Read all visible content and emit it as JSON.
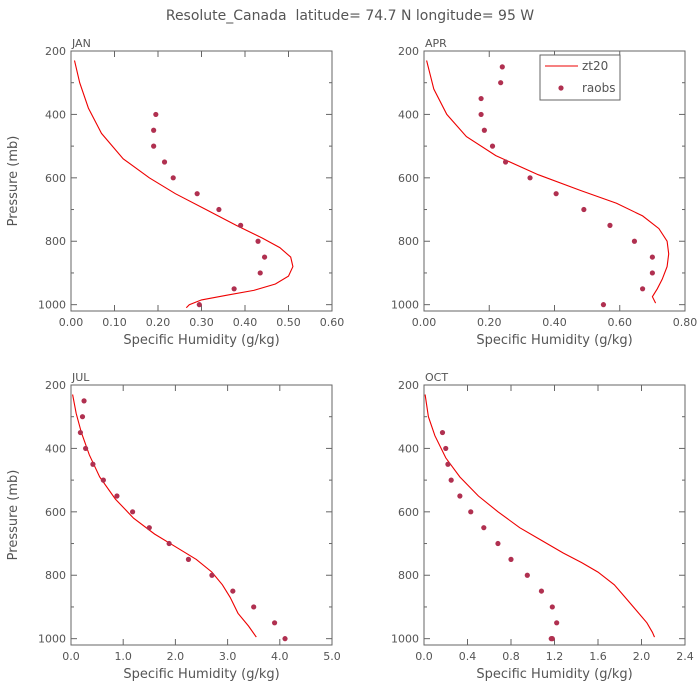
{
  "title": "Resolute_Canada  latitude= 74.7 N longitude= 95 W",
  "colors": {
    "model": "#ee0000",
    "obs": "#b03050",
    "axis": "#666666",
    "text": "#555555"
  },
  "legend": {
    "model": "zt20",
    "obs": "raobs"
  },
  "chart_data": [
    {
      "type": "line",
      "panel": "JAN",
      "xlabel": "Specific Humidity (g/kg)",
      "ylabel": "Pressure (mb)",
      "xlim": [
        0,
        0.6
      ],
      "ylim": [
        1020,
        200
      ],
      "xticks": [
        0,
        0.1,
        0.2,
        0.3,
        0.4,
        0.5,
        0.6
      ],
      "xtick_labels": [
        "0.00",
        "0.10",
        "0.20",
        "0.30",
        "0.40",
        "0.50",
        "0.60"
      ],
      "yticks": [
        200,
        400,
        600,
        800,
        1000
      ],
      "ytick_labels": [
        "200",
        "400",
        "600",
        "800",
        "1000"
      ],
      "series": [
        {
          "name": "zt20",
          "kind": "line",
          "x": [
            0.265,
            0.272,
            0.3,
            0.36,
            0.42,
            0.47,
            0.5,
            0.51,
            0.505,
            0.48,
            0.44,
            0.38,
            0.31,
            0.24,
            0.18,
            0.12,
            0.07,
            0.04,
            0.02,
            0.008
          ],
          "y": [
            1010,
            1000,
            985,
            970,
            955,
            935,
            910,
            880,
            850,
            820,
            790,
            750,
            700,
            650,
            600,
            540,
            460,
            380,
            300,
            230
          ]
        },
        {
          "name": "raobs",
          "kind": "points",
          "x": [
            0.195,
            0.19,
            0.19,
            0.215,
            0.235,
            0.29,
            0.34,
            0.39,
            0.43,
            0.445,
            0.435,
            0.375,
            0.295
          ],
          "y": [
            400,
            450,
            500,
            550,
            600,
            650,
            700,
            750,
            800,
            850,
            900,
            950,
            1000
          ]
        }
      ]
    },
    {
      "type": "line",
      "panel": "APR",
      "xlabel": "Specific Humidity (g/kg)",
      "ylabel": "",
      "xlim": [
        0,
        0.8
      ],
      "ylim": [
        1020,
        200
      ],
      "xticks": [
        0,
        0.2,
        0.4,
        0.6,
        0.8
      ],
      "xtick_labels": [
        "0.00",
        "0.20",
        "0.40",
        "0.60",
        "0.80"
      ],
      "yticks": [
        200,
        400,
        600,
        800,
        1000
      ],
      "ytick_labels": [
        "200",
        "400",
        "600",
        "800",
        "1000"
      ],
      "series": [
        {
          "name": "zt20",
          "kind": "line",
          "x": [
            0.71,
            0.7,
            0.715,
            0.73,
            0.745,
            0.75,
            0.745,
            0.72,
            0.67,
            0.59,
            0.48,
            0.35,
            0.22,
            0.13,
            0.07,
            0.03,
            0.008
          ],
          "y": [
            995,
            975,
            950,
            920,
            880,
            840,
            800,
            760,
            720,
            680,
            640,
            590,
            530,
            470,
            400,
            320,
            230
          ]
        },
        {
          "name": "raobs",
          "kind": "points",
          "x": [
            0.24,
            0.235,
            0.175,
            0.175,
            0.185,
            0.21,
            0.25,
            0.325,
            0.405,
            0.49,
            0.57,
            0.645,
            0.7,
            0.7,
            0.67,
            0.55
          ],
          "y": [
            250,
            300,
            350,
            400,
            450,
            500,
            550,
            600,
            650,
            700,
            750,
            800,
            850,
            900,
            950,
            1000
          ]
        }
      ]
    },
    {
      "type": "line",
      "panel": "JUL",
      "xlabel": "Specific Humidity (g/kg)",
      "ylabel": "Pressure (mb)",
      "xlim": [
        0,
        5.0
      ],
      "ylim": [
        1020,
        200
      ],
      "xticks": [
        0,
        1,
        2,
        3,
        4,
        5
      ],
      "xtick_labels": [
        "0.0",
        "1.0",
        "2.0",
        "3.0",
        "4.0",
        "5.0"
      ],
      "yticks": [
        200,
        400,
        600,
        800,
        1000
      ],
      "ytick_labels": [
        "200",
        "400",
        "600",
        "800",
        "1000"
      ],
      "series": [
        {
          "name": "zt20",
          "kind": "line",
          "x": [
            3.55,
            3.4,
            3.2,
            3.05,
            2.9,
            2.7,
            2.4,
            2.0,
            1.6,
            1.2,
            0.85,
            0.55,
            0.35,
            0.2,
            0.1,
            0.03
          ],
          "y": [
            995,
            960,
            920,
            870,
            830,
            790,
            750,
            710,
            670,
            620,
            560,
            490,
            420,
            350,
            290,
            230
          ]
        },
        {
          "name": "raobs",
          "kind": "points",
          "x": [
            0.25,
            0.22,
            0.18,
            0.28,
            0.42,
            0.62,
            0.88,
            1.18,
            1.5,
            1.88,
            2.25,
            2.7,
            3.1,
            3.5,
            3.9,
            4.1
          ],
          "y": [
            250,
            300,
            350,
            400,
            450,
            500,
            550,
            600,
            650,
            700,
            750,
            800,
            850,
            900,
            950,
            1000
          ]
        }
      ]
    },
    {
      "type": "line",
      "panel": "OCT",
      "xlabel": "Specific Humidity (g/kg)",
      "ylabel": "",
      "xlim": [
        0,
        2.4
      ],
      "ylim": [
        1020,
        200
      ],
      "xticks": [
        0,
        0.4,
        0.8,
        1.2,
        1.6,
        2.0,
        2.4
      ],
      "xtick_labels": [
        "0.0",
        "0.4",
        "0.8",
        "1.2",
        "1.6",
        "2.0",
        "2.4"
      ],
      "yticks": [
        200,
        400,
        600,
        800,
        1000
      ],
      "ytick_labels": [
        "200",
        "400",
        "600",
        "800",
        "1000"
      ],
      "series": [
        {
          "name": "zt20",
          "kind": "line",
          "x": [
            2.12,
            2.1,
            2.05,
            1.95,
            1.85,
            1.75,
            1.6,
            1.45,
            1.28,
            1.08,
            0.88,
            0.68,
            0.5,
            0.33,
            0.2,
            0.1,
            0.04,
            0.01
          ],
          "y": [
            995,
            980,
            950,
            910,
            870,
            830,
            790,
            760,
            730,
            690,
            650,
            600,
            550,
            490,
            430,
            360,
            300,
            230
          ]
        },
        {
          "name": "raobs",
          "kind": "points",
          "x": [
            0.17,
            0.2,
            0.22,
            0.25,
            0.33,
            0.43,
            0.55,
            0.68,
            0.8,
            0.95,
            1.08,
            1.18,
            1.22,
            1.18,
            1.17
          ],
          "y": [
            350,
            400,
            450,
            500,
            550,
            600,
            650,
            700,
            750,
            800,
            850,
            900,
            950,
            1000,
            1000
          ]
        }
      ]
    }
  ]
}
